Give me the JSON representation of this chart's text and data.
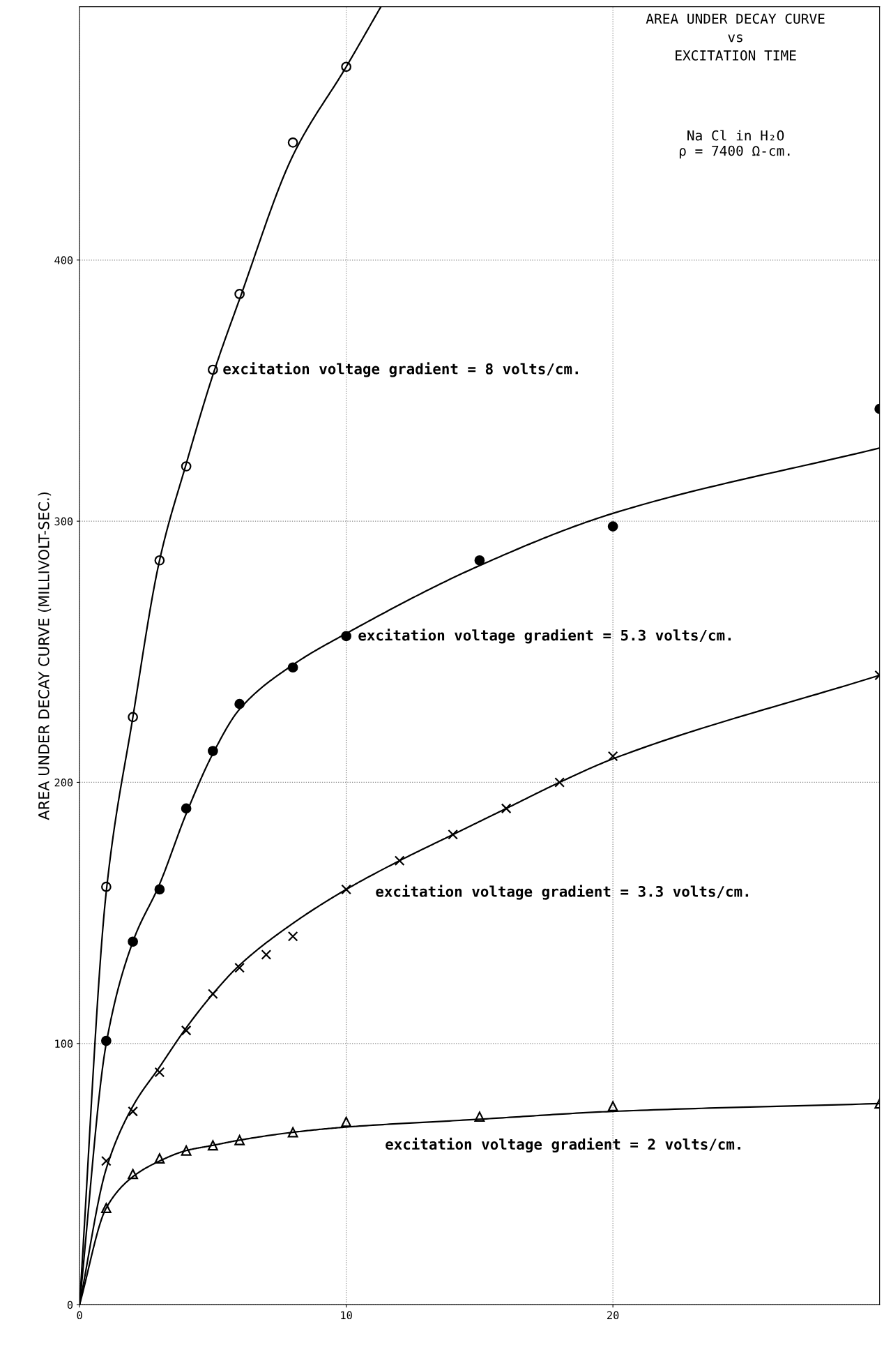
{
  "chart_data": {
    "type": "scatter",
    "title": "AREA UNDER DECAY CURVE\nvs\nEXCITATION TIME",
    "subtitle": "Na Cl in H₂O\nρ = 7400 Ω-cm.",
    "ylabel": "AREA UNDER DECAY CURVE (MILLIVOLT-SEC.)",
    "xlim": [
      0,
      30
    ],
    "xticks": [
      0,
      10,
      20
    ],
    "ylim": [
      0,
      497
    ],
    "yticks": [
      0,
      100,
      200,
      300,
      400
    ],
    "grid": true,
    "series": [
      {
        "name": "excitation voltage gradient = 8 volts/cm.",
        "marker": "circle",
        "color": "#000000",
        "x": [
          1,
          2,
          3,
          4,
          5,
          6,
          8,
          10
        ],
        "values": [
          160,
          225,
          285,
          321,
          358,
          387,
          445,
          474
        ]
      },
      {
        "name": "excitation voltage gradient = 5.3 volts/cm.",
        "marker": "circle",
        "color": "#000000",
        "x": [
          1,
          2,
          3,
          4,
          5,
          6,
          8,
          10,
          15,
          20,
          30
        ],
        "values": [
          101,
          139,
          159,
          190,
          212,
          230,
          244,
          256,
          285,
          298,
          343
        ]
      },
      {
        "name": "excitation voltage gradient = 3.3 volts/cm.",
        "marker": "cross",
        "color": "#000000",
        "x": [
          1,
          2,
          3,
          4,
          5,
          6,
          7,
          8,
          10,
          12,
          14,
          16,
          18,
          20,
          30
        ],
        "values": [
          55,
          74,
          89,
          105,
          119,
          129,
          134,
          141,
          159,
          170,
          180,
          190,
          200,
          210,
          241
        ]
      },
      {
        "name": "excitation voltage gradient = 2 volts/cm.",
        "marker": "triangle",
        "color": "#000000",
        "x": [
          1,
          2,
          3,
          4,
          5,
          6,
          8,
          10,
          15,
          20,
          30
        ],
        "values": [
          37,
          50,
          56,
          59,
          61,
          63,
          66,
          70,
          72,
          76,
          77
        ]
      },
      {
        "type": "line",
        "color": "#000000",
        "x": [
          0,
          1,
          2,
          3,
          4,
          5,
          6,
          8,
          10,
          11.3
        ],
        "values": [
          0,
          158,
          225,
          285,
          322,
          356,
          385,
          440,
          474,
          497
        ]
      },
      {
        "type": "line",
        "color": "#000000",
        "x": [
          0,
          1,
          2,
          3,
          4,
          5,
          6,
          8,
          10,
          15,
          20,
          30
        ],
        "values": [
          0,
          100,
          139,
          161,
          188,
          211,
          228,
          245,
          257,
          283,
          303,
          328
        ]
      },
      {
        "type": "line",
        "color": "#000000",
        "x": [
          0,
          1,
          2,
          3,
          4,
          5,
          6,
          8,
          10,
          12,
          14,
          16,
          18,
          20,
          30
        ],
        "values": [
          0,
          52,
          76,
          91,
          106,
          119,
          130,
          146,
          159,
          170,
          180,
          190,
          200,
          209,
          241
        ]
      },
      {
        "type": "line",
        "color": "#000000",
        "x": [
          0,
          1,
          2,
          3,
          4,
          5,
          6,
          8,
          10,
          15,
          20,
          30
        ],
        "values": [
          0,
          37,
          49,
          55,
          59,
          61,
          63,
          66,
          68,
          71,
          74,
          77
        ]
      }
    ]
  }
}
